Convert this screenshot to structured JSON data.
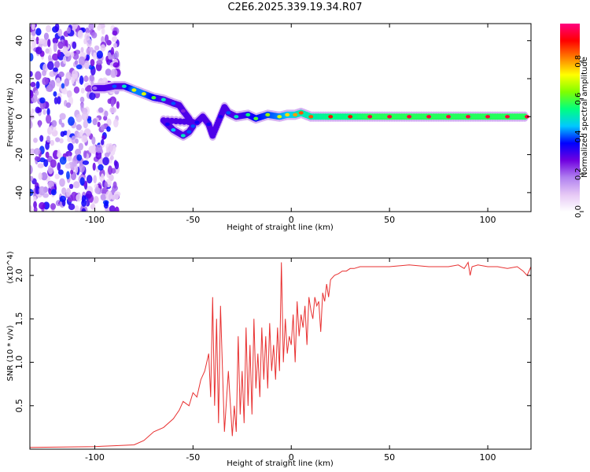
{
  "title": "C2E6.2025.339.19.34.R07",
  "chart_data": [
    {
      "type": "heatmap",
      "name": "spectrogram",
      "xlabel": "Height of straight line (km)",
      "ylabel": "Frequency (Hz)",
      "xlim": [
        -133,
        122
      ],
      "ylim": [
        -50,
        49
      ],
      "xticks": [
        -100,
        -50,
        0,
        50,
        100
      ],
      "xtick_labels": [
        "-100",
        "-50",
        "0",
        "50",
        "100"
      ],
      "yticks": [
        -40,
        -20,
        0,
        20,
        40
      ],
      "ytick_labels": [
        "-40",
        "-20",
        "0",
        "20",
        "40"
      ],
      "colorbar": {
        "label": "Normalized spectral amplitude",
        "range": [
          0,
          1
        ],
        "ticks": [
          0.0,
          0.2,
          0.4,
          0.6,
          0.8
        ],
        "tick_labels": [
          "0.0",
          "0.2",
          "0.4",
          "0.6",
          "0.8"
        ],
        "colors": [
          "#ffffff",
          "#e6c8f5",
          "#b080f0",
          "#7000e0",
          "#0000ff",
          "#00c8ff",
          "#00ff80",
          "#80ff00",
          "#ffff00",
          "#ff8000",
          "#ff0000",
          "#ff0080"
        ]
      },
      "noise_region_x": [
        -133,
        -88
      ],
      "ridge": [
        {
          "x": -100,
          "y": 15,
          "amp": 0.2
        },
        {
          "x": -95,
          "y": 15,
          "amp": 0.3
        },
        {
          "x": -90,
          "y": 16,
          "amp": 0.4
        },
        {
          "x": -85,
          "y": 16,
          "amp": 0.5
        },
        {
          "x": -80,
          "y": 14,
          "amp": 0.7
        },
        {
          "x": -75,
          "y": 12,
          "amp": 0.7
        },
        {
          "x": -70,
          "y": 10,
          "amp": 0.6
        },
        {
          "x": -65,
          "y": 9,
          "amp": 0.5
        },
        {
          "x": -60,
          "y": 7,
          "amp": 0.4
        },
        {
          "x": -57,
          "y": 6,
          "amp": 0.3
        },
        {
          "x": -55,
          "y": 3,
          "amp": 0.25
        },
        {
          "x": -52,
          "y": -1,
          "amp": 0.3
        },
        {
          "x": -50,
          "y": -5,
          "amp": 0.4
        },
        {
          "x": -52,
          "y": -8,
          "amp": 0.4
        },
        {
          "x": -55,
          "y": -10,
          "amp": 0.5
        },
        {
          "x": -60,
          "y": -7,
          "amp": 0.45
        },
        {
          "x": -63,
          "y": -4,
          "amp": 0.35
        },
        {
          "x": -65,
          "y": -2,
          "amp": 0.3
        },
        {
          "x": -48,
          "y": -3,
          "amp": 0.35
        },
        {
          "x": -45,
          "y": 0,
          "amp": 0.3
        },
        {
          "x": -42,
          "y": -4,
          "amp": 0.35
        },
        {
          "x": -40,
          "y": -10,
          "amp": 0.3
        },
        {
          "x": -36,
          "y": 0,
          "amp": 0.35
        },
        {
          "x": -34,
          "y": 5,
          "amp": 0.3
        },
        {
          "x": -32,
          "y": 2,
          "amp": 0.4
        },
        {
          "x": -28,
          "y": 0,
          "amp": 0.5
        },
        {
          "x": -22,
          "y": 1,
          "amp": 0.55
        },
        {
          "x": -18,
          "y": -1,
          "amp": 0.6
        },
        {
          "x": -12,
          "y": 1,
          "amp": 0.65
        },
        {
          "x": -6,
          "y": 0,
          "amp": 0.7
        },
        {
          "x": -2,
          "y": 1,
          "amp": 0.75
        },
        {
          "x": 2,
          "y": 1,
          "amp": 0.8
        },
        {
          "x": 5,
          "y": 2,
          "amp": 0.85
        },
        {
          "x": 10,
          "y": 0,
          "amp": 0.85
        },
        {
          "x": 20,
          "y": 0,
          "amp": 0.9
        },
        {
          "x": 30,
          "y": 0,
          "amp": 0.9
        },
        {
          "x": 40,
          "y": 0,
          "amp": 0.95
        },
        {
          "x": 50,
          "y": 0,
          "amp": 0.95
        },
        {
          "x": 60,
          "y": 0,
          "amp": 0.95
        },
        {
          "x": 70,
          "y": 0,
          "amp": 0.95
        },
        {
          "x": 80,
          "y": 0,
          "amp": 0.95
        },
        {
          "x": 90,
          "y": 0,
          "amp": 0.95
        },
        {
          "x": 100,
          "y": 0,
          "amp": 0.95
        },
        {
          "x": 110,
          "y": 0,
          "amp": 0.95
        },
        {
          "x": 120,
          "y": 0,
          "amp": 0.95
        }
      ]
    },
    {
      "type": "line",
      "name": "snr",
      "xlabel": "Height of straight line (km)",
      "ylabel": "SNR (10 * v/v)",
      "y_multiplier": "(x10^4)",
      "xlim": [
        -133,
        122
      ],
      "ylim": [
        0,
        2.2
      ],
      "xticks": [
        -100,
        -50,
        0,
        50,
        100
      ],
      "xtick_labels": [
        "-100",
        "-50",
        "0",
        "50",
        "100"
      ],
      "yticks": [
        0.5,
        1.0,
        1.5,
        2.0
      ],
      "ytick_labels": [
        "0.5",
        "1.0",
        "1.5",
        "2.0"
      ],
      "color": "#e83030",
      "series": [
        {
          "name": "SNR",
          "x": [
            -133,
            -100,
            -90,
            -80,
            -75,
            -70,
            -65,
            -60,
            -57,
            -55,
            -52,
            -50,
            -48,
            -46,
            -44,
            -42,
            -41,
            -40,
            -39,
            -38,
            -37,
            -36,
            -34,
            -32,
            -30,
            -29,
            -28,
            -27,
            -26,
            -25,
            -24,
            -23,
            -22,
            -21,
            -20,
            -19,
            -18,
            -17,
            -16,
            -15,
            -14,
            -13,
            -12,
            -11,
            -10,
            -9,
            -8,
            -7,
            -6,
            -5,
            -4,
            -3,
            -2,
            -1,
            0,
            1,
            2,
            3,
            4,
            5,
            6,
            7,
            8,
            9,
            10,
            11,
            12,
            13,
            14,
            15,
            16,
            17,
            18,
            19,
            20,
            22,
            24,
            26,
            28,
            30,
            32,
            35,
            40,
            50,
            60,
            70,
            80,
            85,
            88,
            90,
            91,
            92,
            95,
            100,
            105,
            110,
            115,
            118,
            120,
            122
          ],
          "y": [
            0.02,
            0.03,
            0.04,
            0.05,
            0.1,
            0.2,
            0.25,
            0.35,
            0.45,
            0.55,
            0.5,
            0.65,
            0.6,
            0.8,
            0.9,
            1.1,
            0.6,
            1.75,
            0.5,
            1.5,
            0.3,
            1.65,
            0.2,
            0.9,
            0.15,
            0.5,
            0.2,
            1.3,
            0.4,
            0.9,
            0.3,
            1.4,
            0.5,
            1.2,
            0.4,
            1.5,
            0.7,
            1.1,
            0.6,
            1.4,
            0.8,
            1.3,
            0.7,
            1.45,
            0.9,
            1.2,
            0.8,
            1.4,
            0.9,
            2.15,
            1.0,
            1.5,
            1.1,
            1.3,
            1.2,
            1.55,
            1.0,
            1.7,
            1.3,
            1.55,
            1.4,
            1.65,
            1.2,
            1.75,
            1.6,
            1.5,
            1.75,
            1.65,
            1.7,
            1.35,
            1.8,
            1.7,
            1.9,
            1.75,
            1.95,
            2.0,
            2.02,
            2.05,
            2.05,
            2.08,
            2.08,
            2.1,
            2.1,
            2.1,
            2.12,
            2.1,
            2.1,
            2.12,
            2.08,
            2.15,
            2.0,
            2.1,
            2.12,
            2.1,
            2.1,
            2.08,
            2.1,
            2.05,
            2.0,
            2.1
          ]
        }
      ]
    }
  ]
}
